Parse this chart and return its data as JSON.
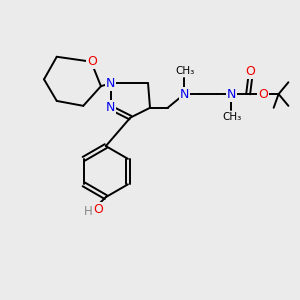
{
  "bg_color": "#ebebeb",
  "N_color": "#0000ee",
  "O_color": "#ee0000",
  "H_color": "#888888",
  "C_color": "#000000",
  "bond_color": "#000000",
  "bond_width": 1.4,
  "figsize": [
    3.0,
    3.0
  ],
  "dpi": 100,
  "xlim": [
    0,
    300
  ],
  "ylim": [
    0,
    300
  ]
}
